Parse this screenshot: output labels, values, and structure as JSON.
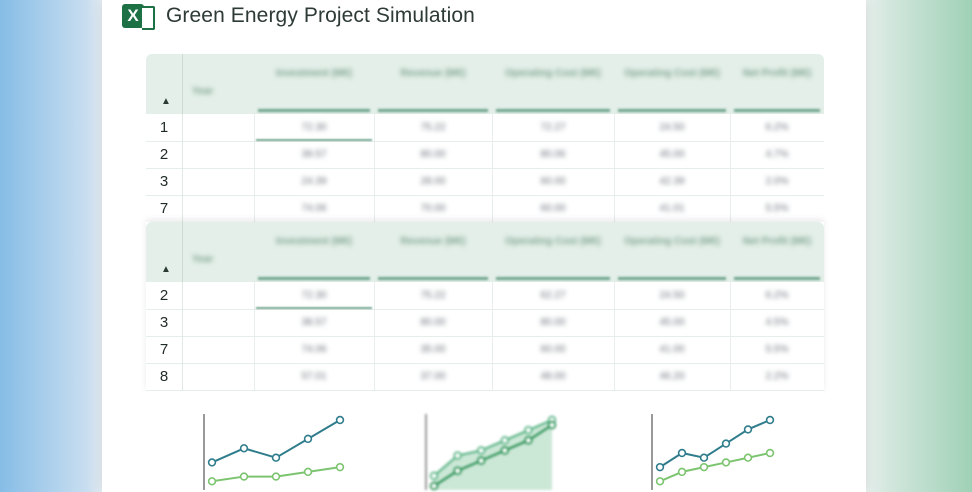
{
  "app": {
    "icon": "excel-icon",
    "icon_letter": "X",
    "title": "Green Energy Project Simulation",
    "accent": "#1e7145",
    "header_bg": "#e3efe8"
  },
  "tables": [
    {
      "columns": [
        "Year",
        "Investment (M€)",
        "Revenue (M€)",
        "Operating Cost (M€)",
        "Operating Cost (M€)",
        "Net Profit (M€)"
      ],
      "rows": [
        {
          "n": "1",
          "cells": [
            "",
            "72.30",
            "75.22",
            "72.27",
            "24.50",
            "6.2%"
          ]
        },
        {
          "n": "2",
          "cells": [
            "",
            "39.57",
            "80.00",
            "80.06",
            "45.00",
            "4.7%"
          ]
        },
        {
          "n": "3",
          "cells": [
            "",
            "24.39",
            "28.00",
            "60.00",
            "42.39",
            "2.0%"
          ]
        },
        {
          "n": "7",
          "cells": [
            "",
            "74.06",
            "70.00",
            "60.00",
            "41.01",
            "5.5%"
          ]
        }
      ]
    },
    {
      "columns": [
        "Year",
        "Investment (M€)",
        "Revenue (M€)",
        "Operating Cost (M€)",
        "Operating Cost (M€)",
        "Net Profit (M€)"
      ],
      "rows": [
        {
          "n": "2",
          "cells": [
            "",
            "72.30",
            "75.22",
            "62.27",
            "24.50",
            "6.2%"
          ]
        },
        {
          "n": "3",
          "cells": [
            "",
            "38.57",
            "80.00",
            "80.00",
            "45.00",
            "4.5%"
          ]
        },
        {
          "n": "7",
          "cells": [
            "",
            "74.06",
            "35.00",
            "60.00",
            "41.00",
            "5.5%"
          ]
        },
        {
          "n": "8",
          "cells": [
            "",
            "57.01",
            "37.00",
            "48.00",
            "46.20",
            "2.2%"
          ]
        }
      ]
    }
  ],
  "charts": [
    {
      "type": "line",
      "series": [
        {
          "color": "#2f7d8c",
          "values": [
            5,
            8,
            6,
            10,
            14
          ]
        },
        {
          "color": "#7cc46f",
          "values": [
            1,
            2,
            2,
            3,
            4
          ]
        }
      ]
    },
    {
      "type": "area",
      "series": [
        {
          "color": "#52b080",
          "values": [
            2,
            6,
            7,
            9,
            11,
            13
          ]
        },
        {
          "color": "#1e8a4a",
          "values": [
            0,
            3,
            5,
            7,
            9,
            12
          ]
        }
      ]
    },
    {
      "type": "line",
      "series": [
        {
          "color": "#2f7d8c",
          "values": [
            4,
            7,
            6,
            9,
            12,
            14
          ]
        },
        {
          "color": "#7cc46f",
          "values": [
            1,
            3,
            4,
            5,
            6,
            7
          ]
        }
      ]
    }
  ]
}
